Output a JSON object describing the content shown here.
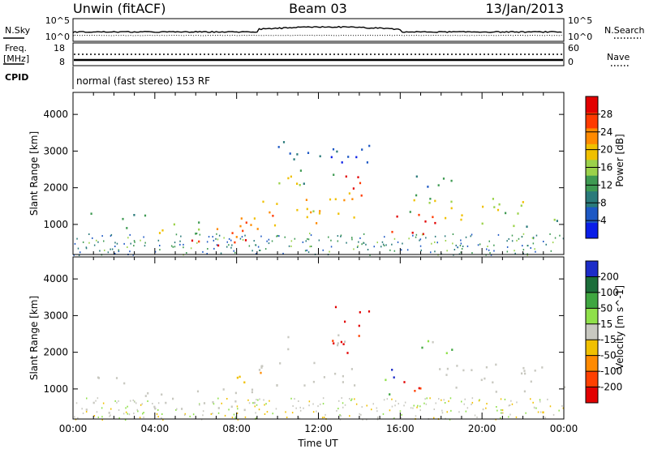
{
  "header": {
    "station": "Unwin (fitACF)",
    "beam": "Beam 03",
    "date": "13/Jan/2013"
  },
  "status_panels": {
    "nsky_label": "N.Sky",
    "nsky_ticks": [
      "10^5",
      "10^0"
    ],
    "nsearch_label": "N.Search",
    "nsearch_ticks": [
      "10^5",
      "10^0"
    ],
    "freq_label_1": "Freq.",
    "freq_label_2": "[MHz]",
    "freq_ticks": [
      "18",
      "8"
    ],
    "nave_label": "Nave",
    "nave_ticks": [
      "60",
      "0"
    ],
    "cpid_label": "CPID",
    "cpid_text": "normal (fast stereo) 153 RF"
  },
  "chart_data": [
    {
      "type": "heatmap",
      "title": "",
      "xlabel": "",
      "ylabel": "Slant Range [km]",
      "x_ticks": [
        "00:00",
        "04:00",
        "08:00",
        "12:00",
        "16:00",
        "20:00",
        "00:00"
      ],
      "xlim_hours": [
        0,
        24
      ],
      "y_ticks": [
        1000,
        2000,
        3000,
        4000
      ],
      "ylim": [
        180,
        4600
      ],
      "colorbar": {
        "label": "Power [dB]",
        "ticks": [
          4,
          8,
          12,
          16,
          20,
          24,
          28
        ],
        "range": [
          0,
          32
        ],
        "colors": [
          "#0a1ee8",
          "#1d58c4",
          "#2a7a7a",
          "#3e9a52",
          "#9bd24a",
          "#f0c000",
          "#ff8a00",
          "#ff3a00",
          "#e20000"
        ]
      },
      "blobs": [
        {
          "t0": 0.3,
          "t1": 3.5,
          "r0": 1100,
          "r1": 1350,
          "level": 10
        },
        {
          "t0": 1.0,
          "t1": 3.0,
          "r0": 900,
          "r1": 1050,
          "level": 12
        },
        {
          "t0": 3.5,
          "t1": 6.5,
          "r0": 700,
          "r1": 1150,
          "level": 16
        },
        {
          "t0": 5.0,
          "t1": 8.5,
          "r0": 420,
          "r1": 800,
          "level": 28
        },
        {
          "t0": 7.0,
          "t1": 10.0,
          "r0": 700,
          "r1": 1400,
          "level": 24
        },
        {
          "t0": 9.0,
          "t1": 12.0,
          "r0": 900,
          "r1": 1700,
          "level": 22
        },
        {
          "t0": 12.0,
          "t1": 14.5,
          "r0": 1100,
          "r1": 2000,
          "level": 20
        },
        {
          "t0": 13.2,
          "t1": 14.2,
          "r0": 1900,
          "r1": 2700,
          "level": 26
        },
        {
          "t0": 9.5,
          "t1": 14.0,
          "r0": 2100,
          "r1": 2500,
          "level": 14
        },
        {
          "t0": 8.5,
          "t1": 14.5,
          "r0": 2700,
          "r1": 3300,
          "level": 6
        },
        {
          "t0": 15.0,
          "t1": 17.8,
          "r0": 750,
          "r1": 1350,
          "level": 30
        },
        {
          "t0": 16.0,
          "t1": 18.0,
          "r0": 1300,
          "r1": 1750,
          "level": 18
        },
        {
          "t0": 18.0,
          "t1": 22.0,
          "r0": 1000,
          "r1": 1800,
          "level": 18
        },
        {
          "t0": 21.5,
          "t1": 24.0,
          "r0": 950,
          "r1": 1300,
          "level": 12
        },
        {
          "t0": 16.5,
          "t1": 18.5,
          "r0": 1700,
          "r1": 2500,
          "level": 9
        }
      ]
    },
    {
      "type": "heatmap",
      "title": "",
      "xlabel": "Time UT",
      "ylabel": "Slant Range [km]",
      "x_ticks": [
        "00:00",
        "04:00",
        "08:00",
        "12:00",
        "16:00",
        "20:00",
        "00:00"
      ],
      "xlim_hours": [
        0,
        24
      ],
      "y_ticks": [
        1000,
        2000,
        3000,
        4000
      ],
      "ylim": [
        180,
        4600
      ],
      "colorbar": {
        "label": "Velocity [m s^-1]",
        "ticks": [
          "200",
          "100",
          "50",
          "15",
          "-15",
          "-50",
          "-100",
          "-200"
        ],
        "colors": [
          "#1c2cc8",
          "#1c6e3a",
          "#3fa640",
          "#8fe04a",
          "#c8c8c0",
          "#f0c000",
          "#ff8a00",
          "#ff4000",
          "#e20000"
        ]
      },
      "blobs": [
        {
          "t0": 0.3,
          "t1": 3.5,
          "r0": 1100,
          "r1": 1350,
          "vel": 0
        },
        {
          "t0": 0.5,
          "t1": 2.0,
          "r0": 200,
          "r1": 700,
          "vel": 0
        },
        {
          "t0": 3.5,
          "t1": 9.0,
          "r0": 450,
          "r1": 1200,
          "vel": 0
        },
        {
          "t0": 7.5,
          "t1": 9.5,
          "r0": 900,
          "r1": 1500,
          "vel": -40
        },
        {
          "t0": 9.0,
          "t1": 14.0,
          "r0": 1100,
          "r1": 1800,
          "vel": 0
        },
        {
          "t0": 12.3,
          "t1": 14.2,
          "r0": 2000,
          "r1": 2700,
          "vel": -150
        },
        {
          "t0": 10.0,
          "t1": 13.5,
          "r0": 2100,
          "r1": 2500,
          "vel": 0
        },
        {
          "t0": 12.5,
          "t1": 14.5,
          "r0": 2700,
          "r1": 3300,
          "vel": -200
        },
        {
          "t0": 15.0,
          "t1": 15.8,
          "r0": 800,
          "r1": 1300,
          "vel": 60
        },
        {
          "t0": 16.0,
          "t1": 17.5,
          "r0": 800,
          "r1": 1400,
          "vel": -150
        },
        {
          "t0": 15.3,
          "t1": 16.2,
          "r0": 1300,
          "r1": 1700,
          "vel": 180
        },
        {
          "t0": 17.5,
          "t1": 24.0,
          "r0": 950,
          "r1": 1700,
          "vel": 0
        },
        {
          "t0": 17.0,
          "t1": 18.5,
          "r0": 1700,
          "r1": 2400,
          "vel": 40
        },
        {
          "t0": 22.5,
          "t1": 24.0,
          "r0": 200,
          "r1": 400,
          "vel": -30
        }
      ]
    }
  ],
  "colors": {
    "line": "#000000",
    "dotted": "#000000"
  }
}
